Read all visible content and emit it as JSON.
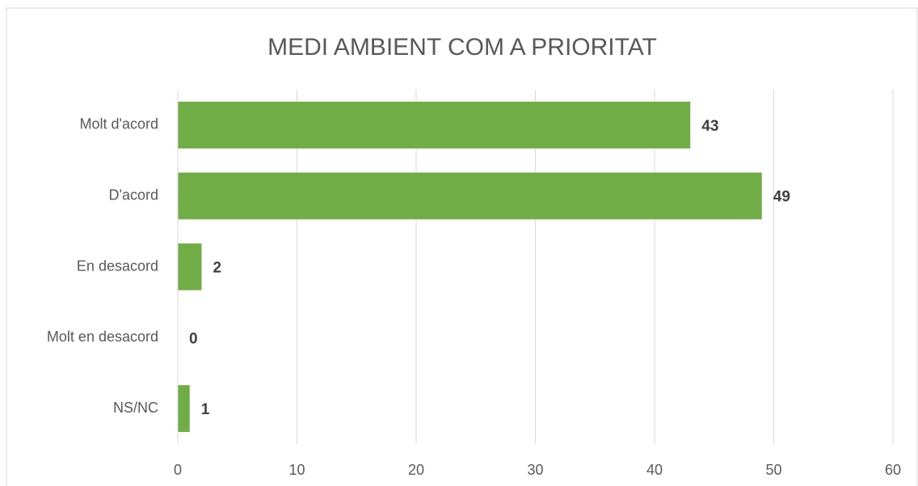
{
  "chart_data": {
    "type": "bar",
    "orientation": "horizontal",
    "title": "MEDI AMBIENT COM A PRIORITAT",
    "categories": [
      "Molt d'acord",
      "D'acord",
      "En desacord",
      "Molt en desacord",
      "NS/NC"
    ],
    "values": [
      43,
      49,
      2,
      0,
      1
    ],
    "color": "#70ad47",
    "xlim": [
      0,
      60
    ],
    "xticks": [
      0,
      10,
      20,
      30,
      40,
      50,
      60
    ],
    "grid": true
  }
}
